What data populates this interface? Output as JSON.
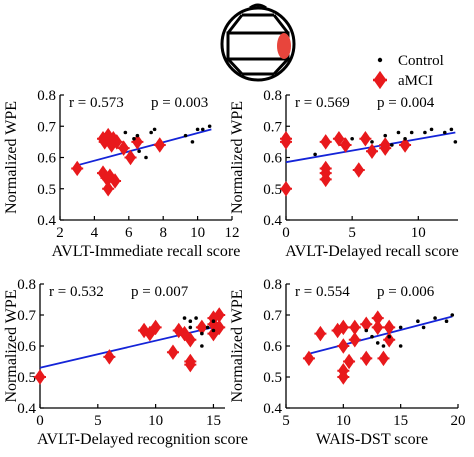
{
  "colors": {
    "control": "#000000",
    "amci": "#e8191c",
    "fit": "#1424d8",
    "axis": "#000000",
    "head_highlight": "#e8453c"
  },
  "legend": {
    "placement": "top-right",
    "items": [
      {
        "label": "Control",
        "marker": "dot",
        "color": "#000000"
      },
      {
        "label": "aMCI",
        "marker": "diamond-plus",
        "color": "#e8191c"
      }
    ]
  },
  "head_icon": {
    "name": "brain-topography-head-icon"
  },
  "chart_data": [
    {
      "type": "scatter",
      "xlabel": "AVLT-Immediate recall score",
      "ylabel": "Normalized WPE",
      "xlim": [
        2,
        12
      ],
      "ylim": [
        0.4,
        0.8
      ],
      "xticks": [
        2,
        4,
        6,
        8,
        10,
        12
      ],
      "yticks": [
        0.4,
        0.5,
        0.6,
        0.7,
        0.8
      ],
      "annotation_r": "r = 0.573",
      "annotation_p": "p = 0.003",
      "fit_line": {
        "x": [
          3.0,
          10.8
        ],
        "y": [
          0.575,
          0.69
        ]
      },
      "series": [
        {
          "label": "Control",
          "points": [
            [
              5.8,
              0.68
            ],
            [
              6.3,
              0.66
            ],
            [
              6.5,
              0.67
            ],
            [
              7.0,
              0.6
            ],
            [
              7.3,
              0.68
            ],
            [
              7.5,
              0.69
            ],
            [
              9.3,
              0.67
            ],
            [
              9.7,
              0.65
            ],
            [
              10.0,
              0.69
            ],
            [
              10.3,
              0.69
            ],
            [
              10.7,
              0.7
            ],
            [
              6.6,
              0.62
            ]
          ]
        },
        {
          "label": "aMCI",
          "points": [
            [
              3.0,
              0.565
            ],
            [
              4.5,
              0.66
            ],
            [
              4.6,
              0.65
            ],
            [
              4.8,
              0.67
            ],
            [
              5.0,
              0.64
            ],
            [
              5.1,
              0.66
            ],
            [
              5.3,
              0.65
            ],
            [
              5.7,
              0.63
            ],
            [
              6.1,
              0.6
            ],
            [
              6.5,
              0.65
            ],
            [
              7.8,
              0.64
            ],
            [
              4.5,
              0.55
            ],
            [
              4.7,
              0.535
            ],
            [
              4.9,
              0.54
            ],
            [
              5.2,
              0.525
            ],
            [
              4.8,
              0.5
            ]
          ]
        }
      ]
    },
    {
      "type": "scatter",
      "xlabel": "AVLT-Delayed recall score",
      "ylabel": "Normalized WPE",
      "xlim": [
        0,
        13
      ],
      "ylim": [
        0.4,
        0.8
      ],
      "xticks": [
        0,
        5,
        10
      ],
      "yticks": [
        0.4,
        0.5,
        0.6,
        0.7,
        0.8
      ],
      "annotation_r": "r = 0.569",
      "annotation_p": "p = 0.004",
      "fit_line": {
        "x": [
          0,
          12.8
        ],
        "y": [
          0.585,
          0.68
        ]
      },
      "series": [
        {
          "label": "Control",
          "points": [
            [
              2.2,
              0.61
            ],
            [
              5.0,
              0.66
            ],
            [
              6.5,
              0.65
            ],
            [
              7.5,
              0.67
            ],
            [
              8.5,
              0.68
            ],
            [
              9.0,
              0.66
            ],
            [
              9.5,
              0.68
            ],
            [
              10.5,
              0.68
            ],
            [
              11.0,
              0.69
            ],
            [
              12.0,
              0.68
            ],
            [
              12.5,
              0.69
            ],
            [
              12.8,
              0.65
            ],
            [
              8.0,
              0.64
            ]
          ]
        },
        {
          "label": "aMCI",
          "points": [
            [
              0,
              0.66
            ],
            [
              0,
              0.65
            ],
            [
              0,
              0.5
            ],
            [
              3.0,
              0.55
            ],
            [
              3.0,
              0.53
            ],
            [
              3.0,
              0.565
            ],
            [
              3.0,
              0.65
            ],
            [
              4.0,
              0.66
            ],
            [
              4.5,
              0.64
            ],
            [
              5.5,
              0.56
            ],
            [
              6.0,
              0.66
            ],
            [
              6.5,
              0.62
            ],
            [
              7.5,
              0.63
            ],
            [
              7.5,
              0.64
            ],
            [
              9.0,
              0.64
            ]
          ]
        }
      ]
    },
    {
      "type": "scatter",
      "xlabel": "AVLT-Delayed recognition score",
      "ylabel": "Normalized WPE",
      "xlim": [
        0,
        16
      ],
      "ylim": [
        0.4,
        0.8
      ],
      "xticks": [
        0,
        5,
        10,
        15
      ],
      "yticks": [
        0.4,
        0.5,
        0.6,
        0.7,
        0.8
      ],
      "annotation_r": "r = 0.532",
      "annotation_p": "p = 0.007",
      "fit_line": {
        "x": [
          0,
          15.5
        ],
        "y": [
          0.53,
          0.665
        ]
      },
      "series": [
        {
          "label": "Control",
          "points": [
            [
              12.5,
              0.69
            ],
            [
              13.0,
              0.68
            ],
            [
              13.5,
              0.69
            ],
            [
              14.0,
              0.6
            ],
            [
              14.5,
              0.66
            ],
            [
              15.0,
              0.68
            ],
            [
              15.0,
              0.65
            ],
            [
              14.0,
              0.64
            ],
            [
              13.0,
              0.66
            ]
          ]
        },
        {
          "label": "aMCI",
          "points": [
            [
              0,
              0.5
            ],
            [
              6.0,
              0.565
            ],
            [
              9.0,
              0.65
            ],
            [
              9.5,
              0.64
            ],
            [
              10.0,
              0.66
            ],
            [
              11.5,
              0.58
            ],
            [
              12.0,
              0.65
            ],
            [
              12.5,
              0.64
            ],
            [
              13.0,
              0.62
            ],
            [
              13.0,
              0.55
            ],
            [
              13.0,
              0.54
            ],
            [
              14.0,
              0.66
            ],
            [
              15.0,
              0.67
            ],
            [
              15.0,
              0.69
            ],
            [
              15.5,
              0.7
            ],
            [
              15.5,
              0.66
            ],
            [
              15.0,
              0.64
            ]
          ]
        }
      ]
    },
    {
      "type": "scatter",
      "xlabel": "WAIS-DST score",
      "ylabel": "Normalized WPE",
      "xlim": [
        5,
        20
      ],
      "ylim": [
        0.4,
        0.8
      ],
      "xticks": [
        5,
        10,
        15,
        20
      ],
      "yticks": [
        0.4,
        0.5,
        0.6,
        0.7,
        0.8
      ],
      "annotation_r": "r = 0.554",
      "annotation_p": "p = 0.006",
      "fit_line": {
        "x": [
          7.0,
          19.5
        ],
        "y": [
          0.575,
          0.695
        ]
      },
      "series": [
        {
          "label": "Control",
          "points": [
            [
              12.0,
              0.65
            ],
            [
              12.5,
              0.63
            ],
            [
              13.0,
              0.61
            ],
            [
              13.5,
              0.6
            ],
            [
              14.0,
              0.63
            ],
            [
              15.0,
              0.6
            ],
            [
              15.0,
              0.66
            ],
            [
              16.5,
              0.68
            ],
            [
              17.0,
              0.66
            ],
            [
              18.0,
              0.69
            ],
            [
              19.0,
              0.68
            ],
            [
              19.5,
              0.7
            ]
          ]
        },
        {
          "label": "aMCI",
          "points": [
            [
              7.0,
              0.56
            ],
            [
              8.0,
              0.64
            ],
            [
              9.5,
              0.65
            ],
            [
              10.0,
              0.66
            ],
            [
              10.0,
              0.6
            ],
            [
              10.0,
              0.5
            ],
            [
              10.0,
              0.52
            ],
            [
              10.5,
              0.55
            ],
            [
              11.0,
              0.66
            ],
            [
              11.0,
              0.62
            ],
            [
              12.0,
              0.67
            ],
            [
              12.0,
              0.56
            ],
            [
              13.0,
              0.69
            ],
            [
              13.0,
              0.66
            ],
            [
              13.5,
              0.56
            ],
            [
              14.0,
              0.66
            ],
            [
              14.0,
              0.62
            ]
          ]
        }
      ]
    }
  ]
}
